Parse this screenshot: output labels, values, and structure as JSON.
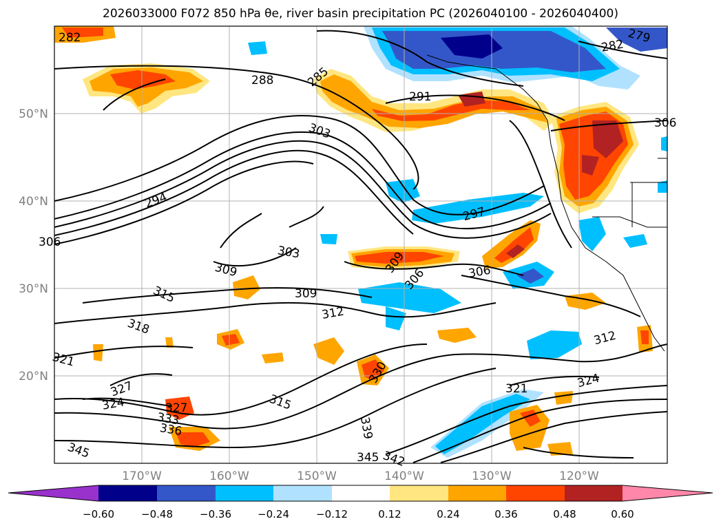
{
  "title": "2026033000 F072 850 hPa θe, river basin precipitation PC (2026040100 - 2026040400)",
  "map": {
    "lon_labels": [
      "170°W",
      "160°W",
      "150°W",
      "140°W",
      "130°W",
      "120°W"
    ],
    "lat_labels": [
      "50°N",
      "40°N",
      "30°N",
      "20°N"
    ],
    "contour_labels": [
      "282",
      "285",
      "288",
      "291",
      "294",
      "297",
      "303",
      "303",
      "306",
      "306",
      "309",
      "309",
      "309",
      "312",
      "312",
      "315",
      "315",
      "318",
      "321",
      "321",
      "324",
      "324",
      "327",
      "327",
      "330",
      "333",
      "336",
      "339",
      "342",
      "345",
      "345",
      "282",
      "279",
      "306",
      "306"
    ]
  },
  "colorbar": {
    "ticks": [
      "−0.60",
      "−0.48",
      "−0.36",
      "−0.24",
      "−0.12",
      "0.12",
      "0.24",
      "0.36",
      "0.48",
      "0.60"
    ],
    "colors": [
      "#9932cc",
      "#00008b",
      "#3357c9",
      "#00bfff",
      "#b0e2ff",
      "#ffffff",
      "#ffe680",
      "#ffa500",
      "#ff4500",
      "#b22222",
      "#ff88aa"
    ]
  }
}
